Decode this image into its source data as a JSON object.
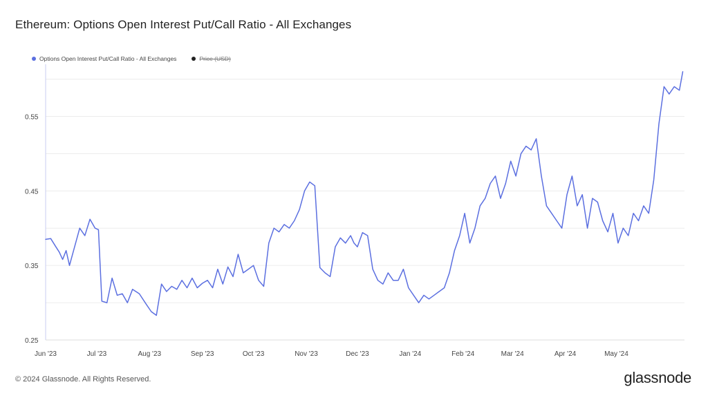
{
  "title": "Ethereum: Options Open Interest Put/Call Ratio - All Exchanges",
  "footer": "© 2024 Glassnode. All Rights Reserved.",
  "brand": "glassnode",
  "colors": {
    "series": "#5b6fe0",
    "price": "#222222",
    "grid": "#ececec"
  },
  "legend": [
    {
      "label": "Options Open Interest Put/Call Ratio - All Exchanges",
      "color": "#5b6fe0",
      "enabled": true
    },
    {
      "label": "Price (USD)",
      "color": "#222222",
      "enabled": false
    }
  ],
  "chart_data": {
    "type": "line",
    "title": "Ethereum: Options Open Interest Put/Call Ratio - All Exchanges",
    "xlabel": "",
    "ylabel": "",
    "ylim": [
      0.25,
      0.62
    ],
    "yticks": [
      0.25,
      0.35,
      0.45,
      0.55
    ],
    "ytick_labels": [
      "0.25",
      "0.35",
      "0.45",
      "0.55"
    ],
    "xticks": [
      "2023-06-01",
      "2023-07-01",
      "2023-08-01",
      "2023-09-01",
      "2023-10-01",
      "2023-11-01",
      "2023-12-01",
      "2024-01-01",
      "2024-02-01",
      "2024-03-01",
      "2024-04-01",
      "2024-05-01"
    ],
    "xtick_labels": [
      "Jun '23",
      "Jul '23",
      "Aug '23",
      "Sep '23",
      "Oct '23",
      "Nov '23",
      "Dec '23",
      "Jan '24",
      "Feb '24",
      "Mar '24",
      "Apr '24",
      "May '24"
    ],
    "xlim": [
      "2023-06-01",
      "2024-06-10"
    ],
    "grid": "horizontal",
    "legend_position": "top-left",
    "series": [
      {
        "name": "Options Open Interest Put/Call Ratio - All Exchanges",
        "x": [
          "2023-06-01",
          "2023-06-04",
          "2023-06-07",
          "2023-06-09",
          "2023-06-11",
          "2023-06-13",
          "2023-06-15",
          "2023-06-18",
          "2023-06-21",
          "2023-06-24",
          "2023-06-27",
          "2023-06-30",
          "2023-07-02",
          "2023-07-04",
          "2023-07-07",
          "2023-07-10",
          "2023-07-13",
          "2023-07-16",
          "2023-07-19",
          "2023-07-22",
          "2023-07-26",
          "2023-07-30",
          "2023-08-02",
          "2023-08-05",
          "2023-08-08",
          "2023-08-11",
          "2023-08-14",
          "2023-08-17",
          "2023-08-20",
          "2023-08-23",
          "2023-08-26",
          "2023-08-29",
          "2023-09-01",
          "2023-09-04",
          "2023-09-07",
          "2023-09-10",
          "2023-09-13",
          "2023-09-16",
          "2023-09-19",
          "2023-09-22",
          "2023-09-25",
          "2023-09-28",
          "2023-10-01",
          "2023-10-04",
          "2023-10-07",
          "2023-10-10",
          "2023-10-13",
          "2023-10-16",
          "2023-10-19",
          "2023-10-22",
          "2023-10-25",
          "2023-10-28",
          "2023-10-31",
          "2023-11-03",
          "2023-11-06",
          "2023-11-09",
          "2023-11-12",
          "2023-11-15",
          "2023-11-18",
          "2023-11-21",
          "2023-11-24",
          "2023-11-27",
          "2023-11-29",
          "2023-12-01",
          "2023-12-04",
          "2023-12-07",
          "2023-12-10",
          "2023-12-13",
          "2023-12-16",
          "2023-12-19",
          "2023-12-22",
          "2023-12-25",
          "2023-12-28",
          "2023-12-31",
          "2024-01-03",
          "2024-01-06",
          "2024-01-09",
          "2024-01-12",
          "2024-01-15",
          "2024-01-18",
          "2024-01-21",
          "2024-01-24",
          "2024-01-27",
          "2024-01-30",
          "2024-02-02",
          "2024-02-05",
          "2024-02-08",
          "2024-02-11",
          "2024-02-14",
          "2024-02-17",
          "2024-02-20",
          "2024-02-23",
          "2024-02-26",
          "2024-02-29",
          "2024-03-03",
          "2024-03-06",
          "2024-03-09",
          "2024-03-12",
          "2024-03-15",
          "2024-03-18",
          "2024-03-21",
          "2024-03-24",
          "2024-03-27",
          "2024-03-30",
          "2024-04-02",
          "2024-04-05",
          "2024-04-08",
          "2024-04-11",
          "2024-04-14",
          "2024-04-17",
          "2024-04-20",
          "2024-04-23",
          "2024-04-26",
          "2024-04-29",
          "2024-05-02",
          "2024-05-05",
          "2024-05-08",
          "2024-05-11",
          "2024-05-14",
          "2024-05-17",
          "2024-05-20",
          "2024-05-23",
          "2024-05-26",
          "2024-05-29",
          "2024-06-01",
          "2024-06-04",
          "2024-06-07",
          "2024-06-09"
        ],
        "values": [
          0.385,
          0.386,
          0.375,
          0.368,
          0.358,
          0.37,
          0.35,
          0.375,
          0.4,
          0.39,
          0.412,
          0.4,
          0.398,
          0.302,
          0.3,
          0.333,
          0.31,
          0.312,
          0.3,
          0.318,
          0.312,
          0.298,
          0.288,
          0.283,
          0.325,
          0.315,
          0.322,
          0.318,
          0.33,
          0.32,
          0.333,
          0.32,
          0.326,
          0.33,
          0.32,
          0.345,
          0.325,
          0.348,
          0.335,
          0.365,
          0.34,
          0.345,
          0.35,
          0.33,
          0.322,
          0.38,
          0.4,
          0.395,
          0.405,
          0.4,
          0.41,
          0.425,
          0.45,
          0.462,
          0.457,
          0.347,
          0.34,
          0.335,
          0.375,
          0.387,
          0.38,
          0.39,
          0.38,
          0.375,
          0.394,
          0.39,
          0.345,
          0.33,
          0.325,
          0.34,
          0.33,
          0.33,
          0.345,
          0.32,
          0.31,
          0.3,
          0.31,
          0.305,
          0.31,
          0.315,
          0.32,
          0.34,
          0.37,
          0.39,
          0.42,
          0.38,
          0.4,
          0.43,
          0.44,
          0.46,
          0.47,
          0.44,
          0.46,
          0.49,
          0.47,
          0.5,
          0.51,
          0.505,
          0.52,
          0.47,
          0.43,
          0.42,
          0.41,
          0.4,
          0.445,
          0.47,
          0.43,
          0.445,
          0.4,
          0.44,
          0.435,
          0.41,
          0.395,
          0.42,
          0.38,
          0.4,
          0.39,
          0.42,
          0.41,
          0.43,
          0.42,
          0.465,
          0.54,
          0.59,
          0.58,
          0.59,
          0.585,
          0.61
        ]
      }
    ]
  }
}
